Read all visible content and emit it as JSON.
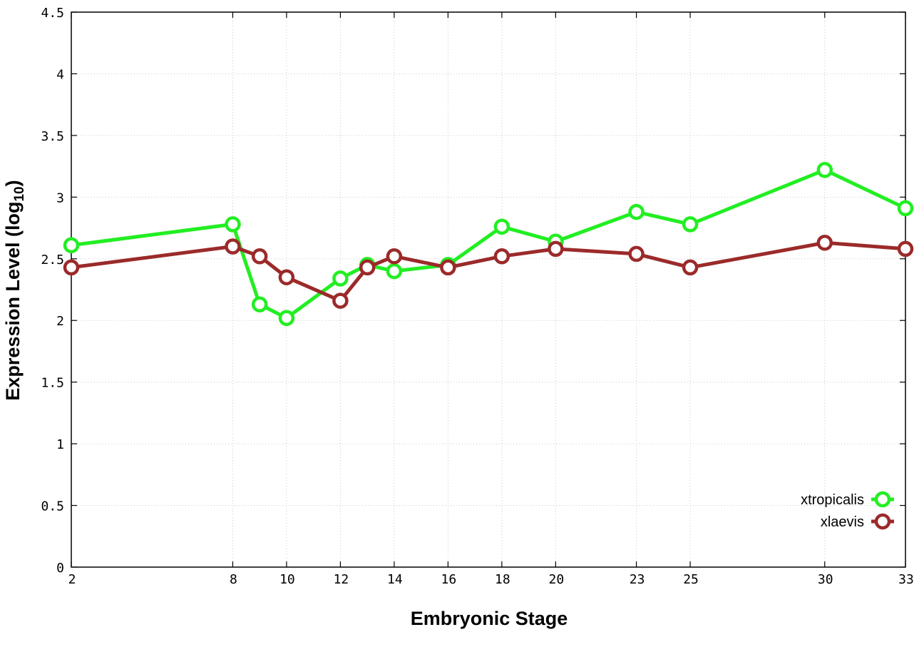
{
  "chart_data": {
    "type": "line",
    "title": "",
    "xlabel": "Embryonic Stage",
    "ylabel": "Expression Level (log",
    "ylabel_subscript": "10",
    "ylabel_suffix": ")",
    "x": [
      2,
      8,
      9,
      10,
      12,
      13,
      14,
      16,
      18,
      20,
      23,
      25,
      30,
      33
    ],
    "x_ticks": [
      "2",
      "8",
      "10",
      "12",
      "14",
      "16",
      "18",
      "20",
      "23",
      "25",
      "30",
      "33"
    ],
    "y_ticks": [
      "0",
      "0.5",
      "1",
      "1.5",
      "2",
      "2.5",
      "3",
      "3.5",
      "4",
      "4.5"
    ],
    "xlim": [
      2,
      33
    ],
    "ylim": [
      0,
      4.5
    ],
    "grid": true,
    "legend_position": "bottom-right",
    "series": [
      {
        "name": "xtropicalis",
        "color": "#22ee22",
        "values": [
          2.61,
          2.78,
          2.13,
          2.02,
          2.34,
          2.45,
          2.4,
          2.45,
          2.76,
          2.64,
          2.88,
          2.78,
          3.22,
          2.91
        ]
      },
      {
        "name": "xlaevis",
        "color": "#9b2a2a",
        "values": [
          2.43,
          2.6,
          2.52,
          2.35,
          2.16,
          2.43,
          2.52,
          2.43,
          2.52,
          2.58,
          2.54,
          2.43,
          2.63,
          2.58
        ]
      }
    ]
  }
}
